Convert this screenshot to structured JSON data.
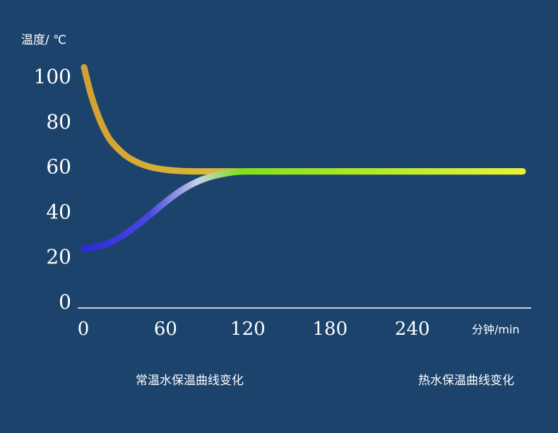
{
  "chart_data": {
    "type": "line",
    "ylabel": "温度/ ℃",
    "xlabel": "分钟/min",
    "xticks": [
      0,
      60,
      120,
      180,
      240
    ],
    "yticks": [
      0,
      20,
      40,
      60,
      80,
      100
    ],
    "xlim": [
      0,
      320
    ],
    "ylim": [
      0,
      110
    ],
    "grid": false,
    "legend_position": "bottom",
    "series": [
      {
        "name": "常温水保温曲线变化",
        "colors": [
          "#2b2bdc",
          "#c8d2e6",
          "#7ee01e",
          "#e8f23a"
        ],
        "x": [
          0,
          10,
          20,
          30,
          40,
          50,
          60,
          70,
          80,
          90,
          100,
          110,
          120,
          150,
          180,
          210,
          240,
          270,
          300,
          320
        ],
        "y": [
          23.5,
          24.5,
          26.5,
          30,
          34.5,
          39.5,
          44.5,
          49,
          52.5,
          55,
          56.5,
          57.5,
          57.8,
          57.8,
          57.8,
          57.8,
          57.8,
          57.8,
          57.8,
          57.8
        ]
      },
      {
        "name": "热水保温曲线变化",
        "colors": [
          "#d4a032",
          "#e8f23a"
        ],
        "x": [
          0,
          5,
          10,
          15,
          20,
          30,
          40,
          50,
          60,
          70,
          80,
          90,
          100,
          110,
          120,
          150,
          180,
          210,
          240,
          270,
          300,
          320
        ],
        "y": [
          104,
          92,
          83,
          76,
          71,
          65,
          61.5,
          59.5,
          58.5,
          58,
          57.8,
          57.8,
          57.8,
          57.8,
          57.8,
          57.8,
          57.8,
          57.8,
          57.8,
          57.8,
          57.8,
          57.8
        ]
      }
    ]
  }
}
